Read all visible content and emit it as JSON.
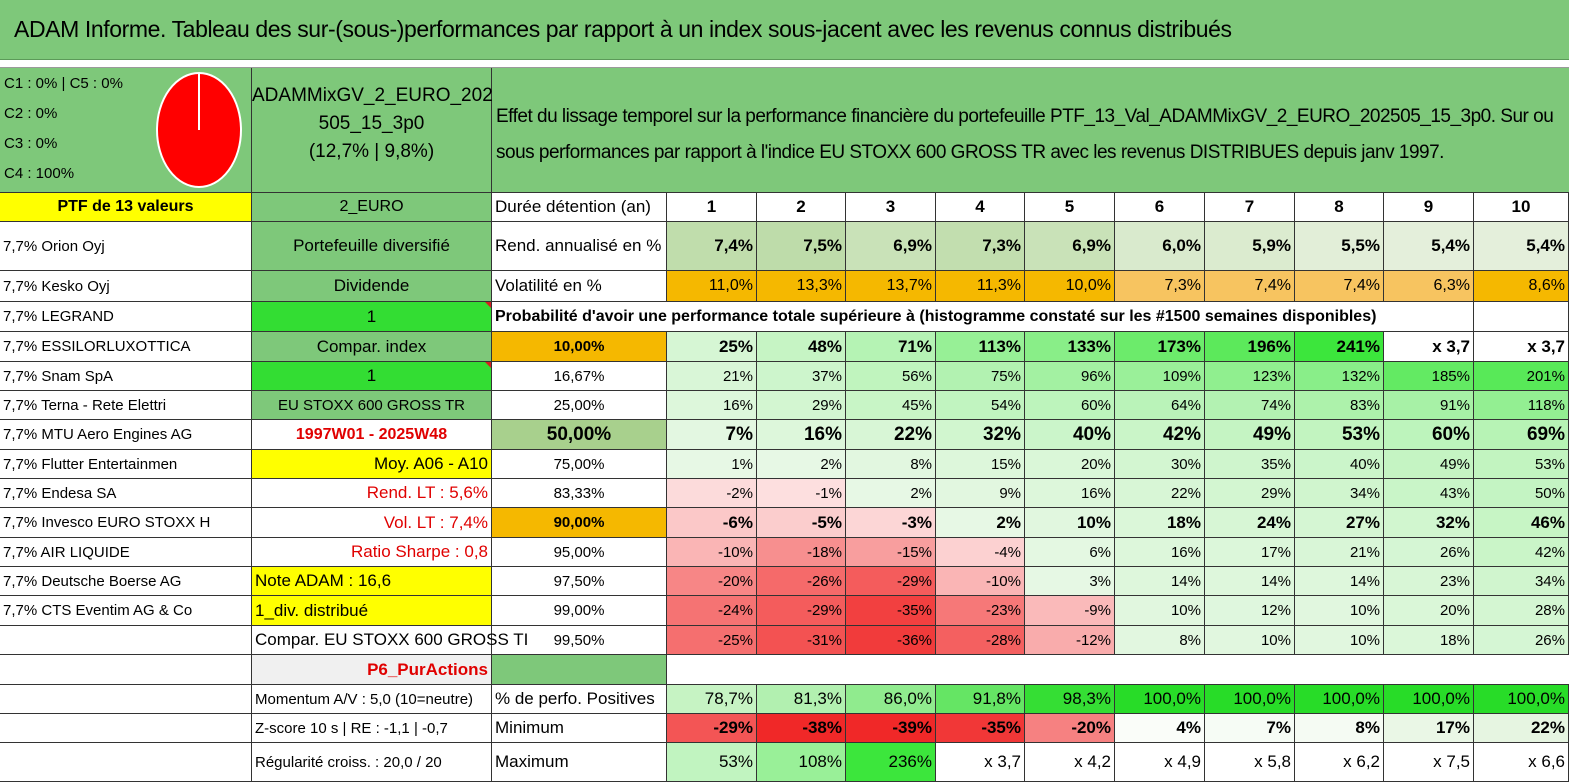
{
  "title": "ADAM Informe. Tableau des sur-(sous-)performances par rapport à un index sous-jacent avec les revenus connus distribués",
  "pie": {
    "legend": [
      "C1 : 0% | C5 : 0%",
      "C2 : 0%",
      "C3 : 0%",
      "C4 : 100%"
    ],
    "color": "#ff0000"
  },
  "portfolio": {
    "name_line1": "ADAMMixGV_2_EURO_202",
    "name_line2": "505_15_3p0",
    "name_line3": "(12,7% | 9,8%)"
  },
  "description": "Effet du lissage temporel sur la performance financière du portefeuille PTF_13_Val_ADAMMixGV_2_EURO_202505_15_3p0. Sur ou sous performances par rapport à l'indice EU STOXX 600 GROSS TR avec les revenus DISTRIBUES depuis janv 1997.",
  "holdings": {
    "header": "PTF de 13 valeurs",
    "items": [
      "7,7% Orion Oyj",
      "7,7% Kesko Oyj",
      "7,7% LEGRAND",
      "7,7% ESSILORLUXOTTICA",
      "7,7% Snam SpA",
      "7,7% Terna - Rete Elettri",
      "7,7% MTU Aero Engines AG",
      "7,7% Flutter Entertainmen",
      "7,7% Endesa SA",
      "7,7% Invesco EURO STOXX H",
      "7,7% AIR LIQUIDE",
      "7,7% Deutsche Boerse AG",
      "7,7% CTS Eventim AG & Co"
    ]
  },
  "info": [
    "2_EURO",
    "Portefeuille diversifié",
    "Dividende",
    "1",
    "Compar. index",
    "1",
    "EU STOXX 600 GROSS TR",
    "1997W01 - 2025W48",
    "Moy. A06 - A10",
    "Rend. LT : 5,6%",
    "Vol. LT : 7,4%",
    "Ratio Sharpe : 0,8",
    "Note ADAM : 16,6",
    "1_div. distribué",
    "Compar. EU STOXX 600 GROSS TI",
    "P6_PurActions",
    "Momentum A/V : 5,0 (10=neutre)",
    "Z-score 10 s | RE : -1,1 | -0,7",
    "Régularité croiss. : 20,0 / 20"
  ],
  "table": {
    "duration_label": "Durée détention (an)",
    "years": [
      "1",
      "2",
      "3",
      "4",
      "5",
      "6",
      "7",
      "8",
      "9",
      "10"
    ],
    "rend_label": "Rend. annualisé en %",
    "rend": [
      "7,4%",
      "7,5%",
      "6,9%",
      "7,3%",
      "6,9%",
      "6,0%",
      "5,9%",
      "5,5%",
      "5,4%",
      "5,4%"
    ],
    "vol_label": "Volatilité en %",
    "vol": [
      "11,0%",
      "13,3%",
      "13,7%",
      "11,3%",
      "10,0%",
      "7,3%",
      "7,4%",
      "7,4%",
      "6,3%",
      "8,6%"
    ],
    "prob_title": "Probabilité d'avoir une performance totale supérieure à (histogramme constaté sur les #1500 semaines disponibles)",
    "prob_rows": [
      {
        "level": "10,00%",
        "values": [
          "25%",
          "48%",
          "71%",
          "113%",
          "133%",
          "173%",
          "196%",
          "241%",
          "x 3,7",
          "x 3,7"
        ]
      },
      {
        "level": "16,67%",
        "values": [
          "21%",
          "37%",
          "56%",
          "75%",
          "96%",
          "109%",
          "123%",
          "132%",
          "185%",
          "201%"
        ]
      },
      {
        "level": "25,00%",
        "values": [
          "16%",
          "29%",
          "45%",
          "54%",
          "60%",
          "64%",
          "74%",
          "83%",
          "91%",
          "118%"
        ]
      },
      {
        "level": "50,00%",
        "values": [
          "7%",
          "16%",
          "22%",
          "32%",
          "40%",
          "42%",
          "49%",
          "53%",
          "60%",
          "69%"
        ]
      },
      {
        "level": "75,00%",
        "values": [
          "1%",
          "2%",
          "8%",
          "15%",
          "20%",
          "30%",
          "35%",
          "40%",
          "49%",
          "53%"
        ]
      },
      {
        "level": "83,33%",
        "values": [
          "-2%",
          "-1%",
          "2%",
          "9%",
          "16%",
          "22%",
          "29%",
          "34%",
          "43%",
          "50%"
        ]
      },
      {
        "level": "90,00%",
        "values": [
          "-6%",
          "-5%",
          "-3%",
          "2%",
          "10%",
          "18%",
          "24%",
          "27%",
          "32%",
          "46%"
        ]
      },
      {
        "level": "95,00%",
        "values": [
          "-10%",
          "-18%",
          "-15%",
          "-4%",
          "6%",
          "16%",
          "17%",
          "21%",
          "26%",
          "42%"
        ]
      },
      {
        "level": "97,50%",
        "values": [
          "-20%",
          "-26%",
          "-29%",
          "-10%",
          "3%",
          "14%",
          "14%",
          "14%",
          "23%",
          "34%"
        ]
      },
      {
        "level": "99,00%",
        "values": [
          "-24%",
          "-29%",
          "-35%",
          "-23%",
          "-9%",
          "10%",
          "12%",
          "10%",
          "20%",
          "28%"
        ]
      },
      {
        "level": "99,50%",
        "values": [
          "-25%",
          "-31%",
          "-36%",
          "-28%",
          "-12%",
          "8%",
          "10%",
          "10%",
          "18%",
          "26%"
        ]
      }
    ],
    "pos_label": "% de perfo. Positives",
    "pos": [
      "78,7%",
      "81,3%",
      "86,0%",
      "91,8%",
      "98,3%",
      "100,0%",
      "100,0%",
      "100,0%",
      "100,0%",
      "100,0%"
    ],
    "min_label": "Minimum",
    "min": [
      "-29%",
      "-38%",
      "-39%",
      "-35%",
      "-20%",
      "4%",
      "7%",
      "8%",
      "17%",
      "22%"
    ],
    "max_label": "Maximum",
    "max": [
      "53%",
      "108%",
      "236%",
      "x 3,7",
      "x 4,2",
      "x 4,9",
      "x 5,8",
      "x 6,2",
      "x 7,5",
      "x 6,6"
    ]
  },
  "colors": {
    "header_green": "#7ec87a",
    "highlight_yellow": "#ffff00",
    "bright_green": "#33dd33",
    "orange": "#f5b800",
    "label_red": "#e00000"
  }
}
